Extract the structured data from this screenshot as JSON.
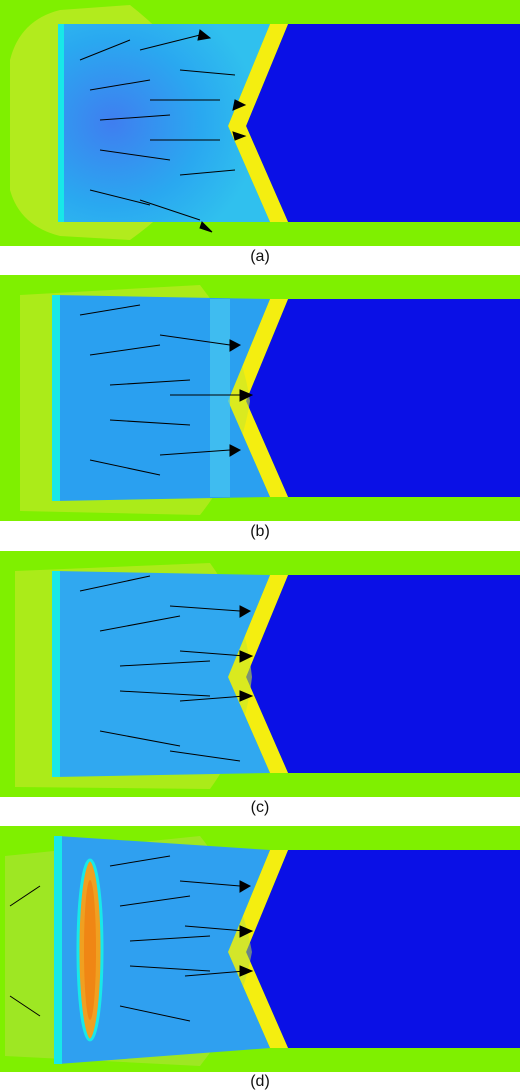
{
  "panels": [
    {
      "id": "a",
      "caption": "(a)",
      "cavity": "none"
    },
    {
      "id": "b",
      "caption": "(b)",
      "cavity": "none"
    },
    {
      "id": "c",
      "caption": "(c)",
      "cavity": "none"
    },
    {
      "id": "d",
      "caption": "(d)",
      "cavity": "elongated"
    }
  ],
  "colors": {
    "outer_green": "#7ff000",
    "liner_blue": "#0a10e6",
    "explosive_light_blue": "#2aa8f0",
    "cone_yellow": "#f4ee10",
    "edge_cyan": "#18e8e8",
    "arrow_black": "#000000"
  }
}
